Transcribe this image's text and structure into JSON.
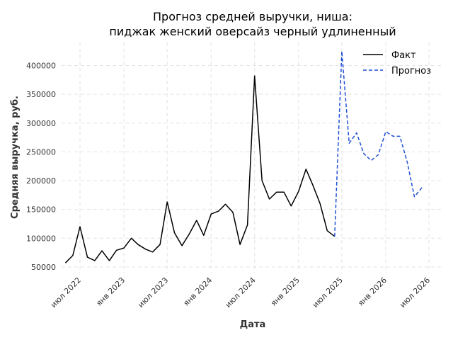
{
  "chart_data": {
    "type": "line",
    "title_line1": "Прогноз средней выручки, ниша:",
    "title_line2": "пиджак женский оверсайз черный удлиненный",
    "xlabel": "Дата",
    "ylabel": "Средняя выручка, руб.",
    "ylim": [
      40000,
      440000
    ],
    "yticks": [
      50000,
      100000,
      150000,
      200000,
      250000,
      300000,
      350000,
      400000
    ],
    "xlim": [
      "2022-04-15",
      "2026-09-01"
    ],
    "xticks": [
      {
        "date": "2022-07-01",
        "label": "июл 2022"
      },
      {
        "date": "2023-01-01",
        "label": "янв 2023"
      },
      {
        "date": "2023-07-01",
        "label": "июл 2023"
      },
      {
        "date": "2024-01-01",
        "label": "янв 2024"
      },
      {
        "date": "2024-07-01",
        "label": "июл 2024"
      },
      {
        "date": "2025-01-01",
        "label": "янв 2025"
      },
      {
        "date": "2025-07-01",
        "label": "июл 2025"
      },
      {
        "date": "2026-01-01",
        "label": "янв 2026"
      },
      {
        "date": "2026-07-01",
        "label": "июл 2026"
      }
    ],
    "grid": true,
    "legend_position": "top-right",
    "series": [
      {
        "name": "Факт",
        "color": "#000000",
        "style": "solid",
        "points": [
          [
            "2022-05-01",
            57000
          ],
          [
            "2022-06-01",
            70000
          ],
          [
            "2022-07-01",
            120000
          ],
          [
            "2022-08-01",
            67000
          ],
          [
            "2022-09-01",
            61000
          ],
          [
            "2022-10-01",
            78000
          ],
          [
            "2022-11-01",
            61000
          ],
          [
            "2022-12-01",
            79000
          ],
          [
            "2023-01-01",
            83000
          ],
          [
            "2023-02-01",
            100000
          ],
          [
            "2023-03-01",
            89000
          ],
          [
            "2023-04-01",
            81000
          ],
          [
            "2023-05-01",
            76000
          ],
          [
            "2023-06-01",
            89000
          ],
          [
            "2023-07-01",
            163000
          ],
          [
            "2023-08-01",
            109000
          ],
          [
            "2023-09-01",
            87000
          ],
          [
            "2023-10-01",
            107000
          ],
          [
            "2023-11-01",
            131000
          ],
          [
            "2023-12-01",
            105000
          ],
          [
            "2024-01-01",
            142000
          ],
          [
            "2024-02-01",
            147000
          ],
          [
            "2024-03-01",
            159000
          ],
          [
            "2024-04-01",
            145000
          ],
          [
            "2024-05-01",
            89000
          ],
          [
            "2024-06-01",
            123000
          ],
          [
            "2024-07-01",
            382000
          ],
          [
            "2024-08-01",
            200000
          ],
          [
            "2024-09-01",
            168000
          ],
          [
            "2024-10-01",
            180000
          ],
          [
            "2024-11-01",
            180000
          ],
          [
            "2024-12-01",
            156000
          ],
          [
            "2025-01-01",
            181000
          ],
          [
            "2025-02-01",
            220000
          ],
          [
            "2025-03-01",
            193000
          ],
          [
            "2025-04-01",
            160000
          ],
          [
            "2025-05-01",
            113000
          ],
          [
            "2025-06-01",
            103000
          ]
        ]
      },
      {
        "name": "Прогноз",
        "color": "#1f4fd6",
        "style": "dashed",
        "points": [
          [
            "2025-06-01",
            103000
          ],
          [
            "2025-07-01",
            425000
          ],
          [
            "2025-08-01",
            265000
          ],
          [
            "2025-09-01",
            283000
          ],
          [
            "2025-10-01",
            247000
          ],
          [
            "2025-11-01",
            235000
          ],
          [
            "2025-12-01",
            245000
          ],
          [
            "2026-01-01",
            285000
          ],
          [
            "2026-02-01",
            277000
          ],
          [
            "2026-03-01",
            277000
          ],
          [
            "2026-04-01",
            232000
          ],
          [
            "2026-05-01",
            172000
          ],
          [
            "2026-06-01",
            188000
          ]
        ]
      }
    ]
  }
}
